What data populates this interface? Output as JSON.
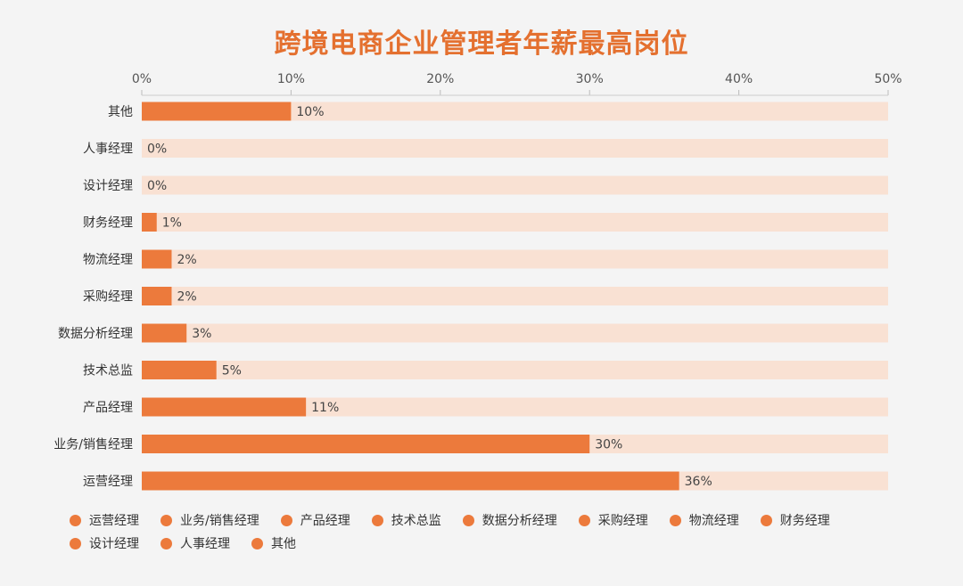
{
  "chart_data": {
    "type": "bar",
    "orientation": "horizontal",
    "title": "跨境电商企业管理者年薪最高岗位",
    "categories": [
      "其他",
      "人事经理",
      "设计经理",
      "财务经理",
      "物流经理",
      "采购经理",
      "数据分析经理",
      "技术总监",
      "产品经理",
      "业务/销售经理",
      "运营经理"
    ],
    "values": [
      10,
      0,
      0,
      1,
      2,
      2,
      3,
      5,
      11,
      30,
      36
    ],
    "value_labels": [
      "10%",
      "0%",
      "0%",
      "1%",
      "2%",
      "2%",
      "3%",
      "5%",
      "11%",
      "30%",
      "36%"
    ],
    "xlim": [
      0,
      50
    ],
    "x_ticks": [
      0,
      10,
      20,
      30,
      40,
      50
    ],
    "x_tick_labels": [
      "0%",
      "10%",
      "20%",
      "30%",
      "40%",
      "50%"
    ],
    "x_axis_position": "top",
    "grid": false,
    "legend_position": "bottom",
    "legend": [
      "运营经理",
      "业务/销售经理",
      "产品经理",
      "技术总监",
      "数据分析经理",
      "采购经理",
      "物流经理",
      "财务经理",
      "设计经理",
      "人事经理",
      "其他"
    ],
    "colors": {
      "bar": "#ec7a3c",
      "track": "#f9e1d3",
      "title": "#e4702f",
      "legend_dot": "#ec7a3c",
      "background": "#f4f4f4"
    }
  }
}
